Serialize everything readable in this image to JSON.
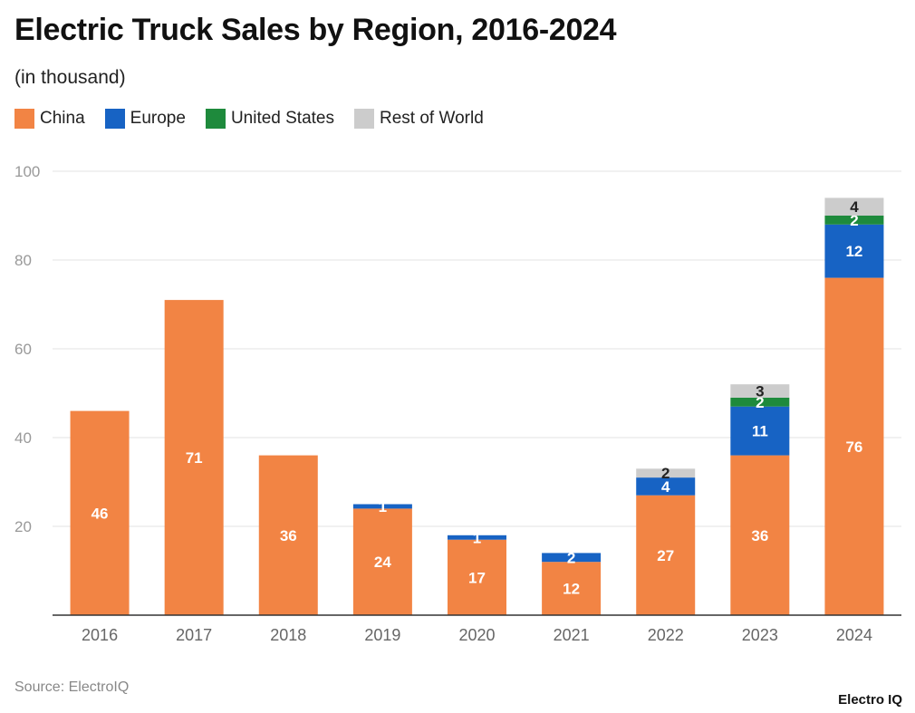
{
  "title": "Electric Truck Sales by Region, 2016-2024",
  "subtitle": "(in thousand)",
  "source": "Source: ElectroIQ",
  "brand": "Electro IQ",
  "legend": [
    {
      "name": "China",
      "color": "#f28444"
    },
    {
      "name": "Europe",
      "color": "#1763c4"
    },
    {
      "name": "United States",
      "color": "#1e8a3c"
    },
    {
      "name": "Rest of World",
      "color": "#cccccc"
    }
  ],
  "chart_data": {
    "type": "bar",
    "stacked": true,
    "title": "Electric Truck Sales by Region, 2016-2024",
    "subtitle": "(in thousand)",
    "xlabel": "",
    "ylabel": "",
    "ylim": [
      0,
      100
    ],
    "yticks": [
      20,
      40,
      60,
      80,
      100
    ],
    "grid": true,
    "legend_position": "top-left",
    "categories": [
      "2016",
      "2017",
      "2018",
      "2019",
      "2020",
      "2021",
      "2022",
      "2023",
      "2024"
    ],
    "series": [
      {
        "name": "China",
        "color": "#f28444",
        "values": [
          46,
          71,
          36,
          24,
          17,
          12,
          27,
          36,
          76
        ]
      },
      {
        "name": "Europe",
        "color": "#1763c4",
        "values": [
          null,
          null,
          null,
          1,
          1,
          2,
          4,
          11,
          12
        ]
      },
      {
        "name": "United States",
        "color": "#1e8a3c",
        "values": [
          null,
          null,
          null,
          null,
          null,
          null,
          null,
          2,
          2
        ]
      },
      {
        "name": "Rest of World",
        "color": "#cccccc",
        "values": [
          null,
          null,
          null,
          null,
          null,
          null,
          2,
          3,
          4
        ]
      }
    ]
  }
}
